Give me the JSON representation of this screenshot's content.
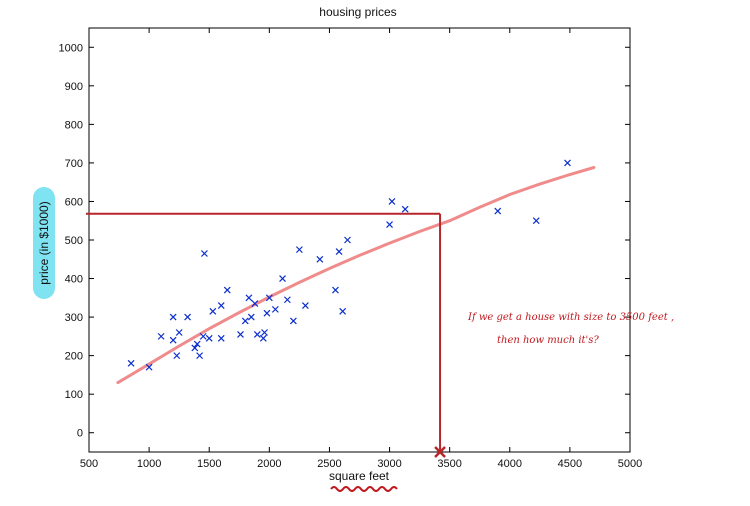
{
  "chart_data": {
    "type": "scatter",
    "title": "housing prices",
    "xlabel": "square feet",
    "ylabel": "price (in $1000)",
    "xlim": [
      500,
      5000
    ],
    "ylim": [
      -50,
      1050
    ],
    "xticks": [
      500,
      1000,
      1500,
      2000,
      2500,
      3000,
      3500,
      4000,
      4500,
      5000
    ],
    "yticks": [
      0,
      100,
      200,
      300,
      400,
      500,
      600,
      700,
      800,
      900,
      1000
    ],
    "grid": false,
    "points": {
      "x": [
        850,
        1000,
        1100,
        1200,
        1200,
        1230,
        1250,
        1320,
        1380,
        1400,
        1420,
        1450,
        1460,
        1500,
        1530,
        1600,
        1600,
        1650,
        1760,
        1800,
        1830,
        1850,
        1880,
        1900,
        1950,
        1960,
        1980,
        2000,
        2050,
        2110,
        2150,
        2200,
        2250,
        2300,
        2420,
        2550,
        2580,
        2610,
        2650,
        3000,
        3020,
        3130,
        3900,
        4220,
        4480
      ],
      "y": [
        180,
        170,
        250,
        240,
        300,
        200,
        260,
        300,
        220,
        230,
        200,
        250,
        465,
        245,
        315,
        245,
        330,
        370,
        255,
        290,
        350,
        300,
        335,
        255,
        245,
        260,
        310,
        350,
        320,
        400,
        345,
        290,
        475,
        330,
        450,
        370,
        470,
        315,
        500,
        540,
        600,
        580,
        575,
        550,
        700
      ]
    },
    "fit_curve": {
      "x": [
        740,
        1000,
        1250,
        1500,
        1750,
        2000,
        2250,
        2500,
        2750,
        3000,
        3250,
        3500,
        3750,
        4000,
        4250,
        4500,
        4700
      ],
      "y": [
        130,
        178,
        225,
        270,
        312,
        352,
        390,
        426,
        460,
        492,
        522,
        550,
        585,
        618,
        645,
        670,
        688
      ]
    },
    "annotation": {
      "marked_x": 3420,
      "predicted_y": 568,
      "note_line1": "If we get a house with size to 3500 feet ,",
      "note_line2": "then how much it's?"
    },
    "colors": {
      "points": "#0a2ecc",
      "fit_curve": "#ef8b8b",
      "annotation": "#b5272a",
      "ylabel_highlight": "#7fe3f2"
    }
  }
}
